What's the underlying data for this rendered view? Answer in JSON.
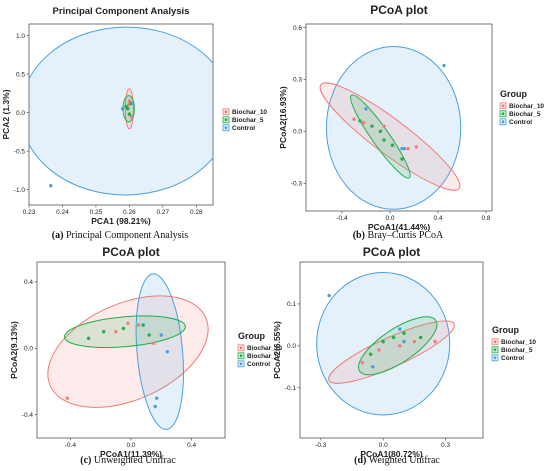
{
  "colors": {
    "Biochar_10": "#f07c78",
    "Biochar_5": "#1fae4a",
    "Control": "#4a9fe0"
  },
  "chart_data": [
    {
      "id": "a",
      "type": "scatter",
      "title": "Principal Component Analysis",
      "xlabel": "PCA1 (98.21%)",
      "ylabel": "PCA2 (1.3%)",
      "xlim": [
        0.23,
        0.285
      ],
      "ylim": [
        -1.2,
        1.15
      ],
      "xticks": [
        0.23,
        0.24,
        0.25,
        0.26,
        0.27,
        0.28
      ],
      "xtick_labels": [
        "0.23",
        "0.24",
        "0.25",
        "0.26",
        "0.27",
        "0.28"
      ],
      "yticks": [
        -1.0,
        -0.5,
        0.0,
        0.5,
        1.0
      ],
      "ytick_labels": [
        "-1.0",
        "-0.5",
        "0.0",
        "0.5",
        "1.0"
      ],
      "legend_title": "",
      "legend": [
        "Biochar_10",
        "Biochar_5",
        "Control"
      ],
      "caption_label": "(a)",
      "caption_text": "Principal Component Analysis",
      "series": [
        {
          "name": "Biochar_10",
          "x": [
            0.2595,
            0.26,
            0.2605,
            0.2598
          ],
          "y": [
            0.05,
            0.15,
            -0.05,
            0.1
          ]
        },
        {
          "name": "Biochar_5",
          "x": [
            0.259,
            0.26,
            0.2595,
            0.2605
          ],
          "y": [
            0.08,
            -0.02,
            0.05,
            0.12
          ]
        },
        {
          "name": "Control",
          "x": [
            0.258,
            0.261,
            0.2365
          ],
          "y": [
            0.05,
            0.12,
            -0.95
          ]
        }
      ],
      "ellipses": [
        {
          "series": "Control",
          "cx": 0.259,
          "cy": 0.02,
          "rx": 0.0315,
          "ry": 1.09,
          "tilt": 0.55
        },
        {
          "series": "Biochar_10",
          "cx": 0.26,
          "cy": 0.05,
          "rx": 0.0012,
          "ry": 0.26,
          "tilt": 0.06
        },
        {
          "series": "Biochar_5",
          "cx": 0.2598,
          "cy": 0.05,
          "rx": 0.0017,
          "ry": 0.17,
          "tilt": 0.0
        }
      ]
    },
    {
      "id": "b",
      "type": "scatter",
      "title": "PCoA plot",
      "xlabel": "PCoA1(41.44%)",
      "ylabel": "PCoA2(16.93%)",
      "xlim": [
        -0.7,
        0.85
      ],
      "ylim": [
        -0.46,
        0.62
      ],
      "xticks": [
        -0.4,
        0.0,
        0.4,
        0.8
      ],
      "xtick_labels": [
        "-0.4",
        "0.0",
        "0.4",
        "0.8"
      ],
      "yticks": [
        -0.3,
        0.0,
        0.3,
        0.6
      ],
      "ytick_labels": [
        "-0.3",
        "0.0",
        "0.3",
        "0.6"
      ],
      "legend_title": "Group",
      "legend": [
        "Biochar_10",
        "Biochar_5",
        "Control"
      ],
      "caption_label": "(b)",
      "caption_text": "Bray–Curtis PCoA",
      "series": [
        {
          "name": "Biochar_10",
          "x": [
            -0.3,
            -0.22,
            -0.05,
            0.15,
            0.22
          ],
          "y": [
            0.07,
            0.05,
            0.03,
            -0.1,
            -0.09
          ]
        },
        {
          "name": "Biochar_5",
          "x": [
            -0.25,
            -0.15,
            -0.08,
            -0.05,
            0.02,
            0.1
          ],
          "y": [
            0.06,
            0.03,
            0.0,
            -0.05,
            -0.08,
            -0.16
          ]
        },
        {
          "name": "Control",
          "x": [
            -0.2,
            0.12,
            0.1,
            0.45
          ],
          "y": [
            0.13,
            -0.1,
            -0.1,
            0.38
          ]
        }
      ],
      "ellipses": [
        {
          "series": "Control",
          "cx": 0.03,
          "cy": 0.02,
          "rx": 0.56,
          "ry": 0.47,
          "tilt": 0.0
        },
        {
          "series": "Biochar_10",
          "cx": 0.0,
          "cy": -0.03,
          "rx": 0.72,
          "ry": 0.1,
          "tilt": -0.48
        },
        {
          "series": "Biochar_5",
          "cx": -0.08,
          "cy": -0.03,
          "rx": 0.42,
          "ry": 0.05,
          "tilt": -0.78
        }
      ]
    },
    {
      "id": "c",
      "type": "scatter",
      "title": "PCoA plot",
      "xlabel": "PCoA1(11.39%)",
      "ylabel": "PCoA2(9.13%)",
      "xlim": [
        -0.62,
        0.62
      ],
      "ylim": [
        -0.54,
        0.52
      ],
      "xticks": [
        -0.4,
        0.0,
        0.4
      ],
      "xtick_labels": [
        "-0.4",
        "0.0",
        "0.4"
      ],
      "yticks": [
        -0.4,
        0.0,
        0.4
      ],
      "ytick_labels": [
        "-0.4",
        "0.0",
        "0.4"
      ],
      "legend_title": "Group",
      "legend": [
        "Biochar_10",
        "Biochar_5",
        "Control"
      ],
      "caption_label": "(c)",
      "caption_text": "Unweighted Unifrac",
      "series": [
        {
          "name": "Biochar_10",
          "x": [
            -0.42,
            -0.1,
            -0.02,
            0.05,
            0.15
          ],
          "y": [
            -0.3,
            0.1,
            0.15,
            0.14,
            0.03
          ],
          "shape": "square"
        },
        {
          "name": "Biochar_5",
          "x": [
            -0.28,
            -0.18,
            -0.05,
            0.08,
            0.12
          ],
          "y": [
            0.06,
            0.1,
            0.12,
            0.14,
            0.08
          ]
        },
        {
          "name": "Control",
          "x": [
            0.2,
            0.24,
            0.17,
            0.16
          ],
          "y": [
            0.08,
            -0.02,
            -0.3,
            -0.35
          ]
        }
      ],
      "ellipses": [
        {
          "series": "Biochar_10",
          "cx": -0.02,
          "cy": -0.02,
          "rx": 0.56,
          "ry": 0.29,
          "tilt": 0.38
        },
        {
          "series": "Control",
          "cx": 0.19,
          "cy": -0.02,
          "rx": 0.15,
          "ry": 0.47,
          "tilt": 0.08
        },
        {
          "series": "Biochar_5",
          "cx": -0.04,
          "cy": 0.1,
          "rx": 0.4,
          "ry": 0.09,
          "tilt": 0.08
        }
      ]
    },
    {
      "id": "d",
      "type": "scatter",
      "title": "PCoA plot",
      "xlabel": "PCoA1(80.72%)",
      "ylabel": "PCoA2(6.55%)",
      "xlim": [
        -0.4,
        0.48
      ],
      "ylim": [
        -0.22,
        0.2
      ],
      "xticks": [
        -0.3,
        0.0,
        0.3
      ],
      "xtick_labels": [
        "-0.3",
        "0.0",
        "0.3"
      ],
      "yticks": [
        -0.1,
        0.0,
        0.1
      ],
      "ytick_labels": [
        "-0.1",
        "0.0",
        "0.1"
      ],
      "legend_title": "Group",
      "legend": [
        "Biochar_10",
        "Biochar_5",
        "Control"
      ],
      "caption_label": "(d)",
      "caption_text": "Weighted Unifrac",
      "series": [
        {
          "name": "Biochar_10",
          "x": [
            -0.1,
            -0.02,
            0.08,
            0.15,
            0.25
          ],
          "y": [
            -0.04,
            -0.01,
            0.0,
            0.01,
            0.01
          ]
        },
        {
          "name": "Biochar_5",
          "x": [
            -0.06,
            0.0,
            0.05,
            0.1,
            0.18
          ],
          "y": [
            -0.02,
            0.01,
            0.02,
            0.03,
            0.02
          ]
        },
        {
          "name": "Control",
          "x": [
            -0.26,
            -0.05,
            0.08,
            0.1
          ],
          "y": [
            0.12,
            -0.05,
            0.04,
            0.01
          ]
        }
      ],
      "ellipses": [
        {
          "series": "Control",
          "cx": 0.0,
          "cy": 0.005,
          "rx": 0.32,
          "ry": 0.17,
          "tilt": 0.0
        },
        {
          "series": "Biochar_10",
          "cx": 0.04,
          "cy": -0.015,
          "rx": 0.33,
          "ry": 0.035,
          "tilt": 0.22
        },
        {
          "series": "Biochar_5",
          "cx": 0.07,
          "cy": 0.0,
          "rx": 0.22,
          "ry": 0.04,
          "tilt": 0.32
        }
      ]
    }
  ]
}
